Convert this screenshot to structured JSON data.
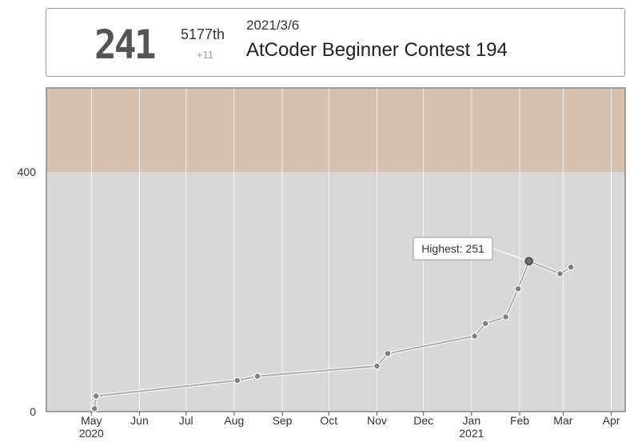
{
  "header": {
    "rating": "241",
    "rank": "5177th",
    "delta": "+11",
    "date": "2021/3/6",
    "contest_name": "AtCoder Beginner Contest 194"
  },
  "colors": {
    "band_gray": "#d8d8d8",
    "band_brown": "#d8c0af",
    "line": "#aaaaaa",
    "point": "#808080",
    "highlight_point": "#6e6e6e"
  },
  "chart_data": {
    "type": "line",
    "x_ticks": [
      {
        "date": "2020-05-01",
        "label": "May",
        "year": "2020"
      },
      {
        "date": "2020-06-01",
        "label": "Jun"
      },
      {
        "date": "2020-07-01",
        "label": "Jul"
      },
      {
        "date": "2020-08-01",
        "label": "Aug"
      },
      {
        "date": "2020-09-01",
        "label": "Sep"
      },
      {
        "date": "2020-10-01",
        "label": "Oct"
      },
      {
        "date": "2020-11-01",
        "label": "Nov"
      },
      {
        "date": "2020-12-01",
        "label": "Dec"
      },
      {
        "date": "2021-01-01",
        "label": "Jan",
        "year": "2021"
      },
      {
        "date": "2021-02-01",
        "label": "Feb"
      },
      {
        "date": "2021-03-01",
        "label": "Mar"
      },
      {
        "date": "2021-04-01",
        "label": "Apr"
      }
    ],
    "y_ticks": [
      0,
      400
    ],
    "ylim": [
      0,
      540
    ],
    "xlim": [
      "2020-04-02",
      "2021-04-10"
    ],
    "bands": [
      {
        "from": 0,
        "to": 400,
        "color": "#d8d8d8"
      },
      {
        "from": 400,
        "to": 540,
        "color": "#d8c0af"
      }
    ],
    "points": [
      {
        "date": "2020-05-03",
        "rating": 5
      },
      {
        "date": "2020-05-04",
        "rating": 26
      },
      {
        "date": "2020-08-03",
        "rating": 52
      },
      {
        "date": "2020-08-16",
        "rating": 59
      },
      {
        "date": "2020-11-01",
        "rating": 76
      },
      {
        "date": "2020-11-08",
        "rating": 97
      },
      {
        "date": "2021-01-03",
        "rating": 126
      },
      {
        "date": "2021-01-10",
        "rating": 147
      },
      {
        "date": "2021-01-23",
        "rating": 158
      },
      {
        "date": "2021-01-31",
        "rating": 205
      },
      {
        "date": "2021-02-07",
        "rating": 251,
        "highlight": true
      },
      {
        "date": "2021-02-27",
        "rating": 230
      },
      {
        "date": "2021-03-06",
        "rating": 241
      }
    ],
    "annotation": {
      "text": "Highest: 251",
      "date": "2021-02-07",
      "rating": 251
    }
  }
}
